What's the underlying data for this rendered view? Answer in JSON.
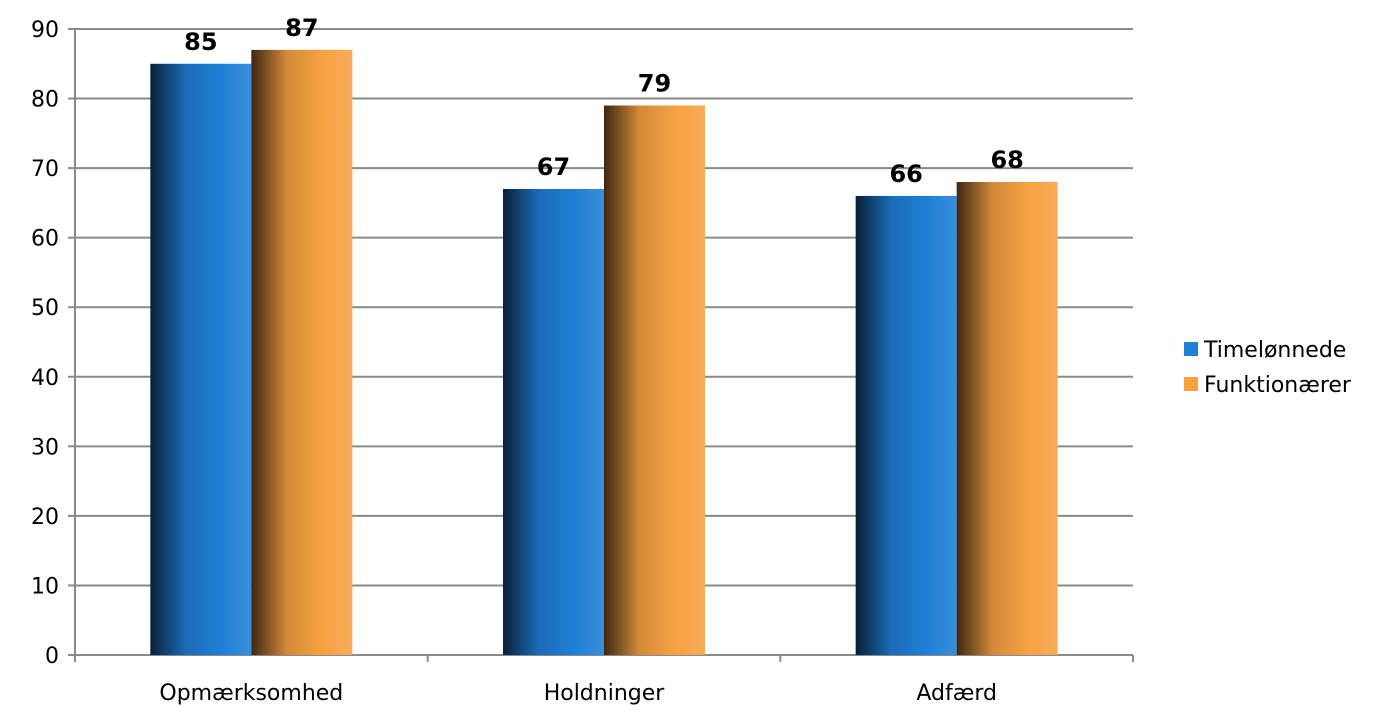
{
  "chart_data": {
    "type": "bar",
    "title": "",
    "xlabel": "",
    "ylabel": "",
    "categories": [
      "Opmærksomhed",
      "Holdninger",
      "Adfærd"
    ],
    "series": [
      {
        "name": "Timelønnede",
        "values": [
          85,
          67,
          66
        ],
        "color": "#1f7fd6"
      },
      {
        "name": "Funktionærer",
        "values": [
          87,
          79,
          68
        ],
        "color": "#f7a142"
      }
    ],
    "ylim": [
      0,
      90
    ],
    "yticks": [
      0,
      10,
      20,
      30,
      40,
      50,
      60,
      70,
      80,
      90
    ],
    "grid": true,
    "legend": "right",
    "data_labels": true
  }
}
